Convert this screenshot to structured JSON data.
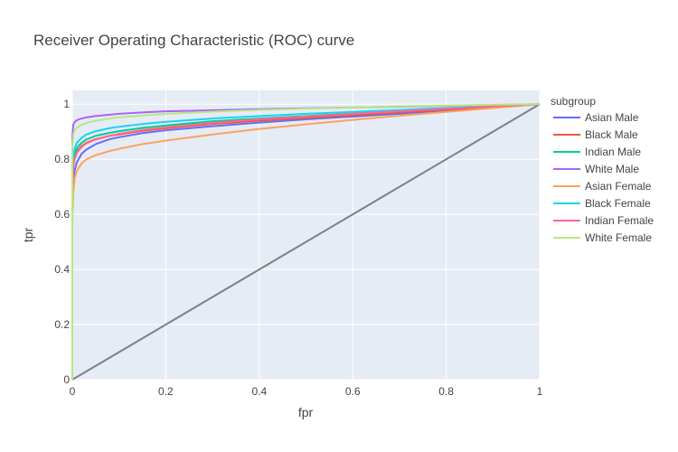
{
  "chart_data": {
    "type": "line",
    "title": "Receiver Operating Characteristic (ROC) curve",
    "xlabel": "fpr",
    "ylabel": "tpr",
    "xlim": [
      0,
      1
    ],
    "ylim": [
      0,
      1.05
    ],
    "x_ticks": [
      "0",
      "0.2",
      "0.4",
      "0.6",
      "0.8",
      "1"
    ],
    "y_ticks": [
      "0",
      "0.2",
      "0.4",
      "0.6",
      "0.8",
      "1"
    ],
    "grid": true,
    "plot_background": "#E5ECF6",
    "legend": {
      "title": "subgroup",
      "placement": "right"
    },
    "series": [
      {
        "name": "Asian Male",
        "color": "#636EFA",
        "x": [
          0,
          0,
          0.002,
          0.005,
          0.01,
          0.02,
          0.03,
          0.05,
          0.08,
          0.1,
          0.15,
          0.2,
          0.3,
          0.4,
          0.5,
          0.6,
          0.7,
          0.8,
          0.9,
          1.0
        ],
        "y": [
          0,
          0.62,
          0.72,
          0.76,
          0.79,
          0.82,
          0.835,
          0.855,
          0.873,
          0.88,
          0.895,
          0.905,
          0.92,
          0.933,
          0.945,
          0.955,
          0.965,
          0.977,
          0.988,
          1.0
        ]
      },
      {
        "name": "Black Male",
        "color": "#EF553B",
        "x": [
          0,
          0,
          0.002,
          0.005,
          0.01,
          0.02,
          0.03,
          0.05,
          0.08,
          0.1,
          0.15,
          0.2,
          0.3,
          0.4,
          0.5,
          0.6,
          0.7,
          0.8,
          0.9,
          1.0
        ],
        "y": [
          0,
          0.7,
          0.78,
          0.81,
          0.83,
          0.848,
          0.86,
          0.873,
          0.885,
          0.89,
          0.903,
          0.912,
          0.928,
          0.94,
          0.95,
          0.96,
          0.97,
          0.98,
          0.99,
          1.0
        ]
      },
      {
        "name": "Indian Male",
        "color": "#00CC96",
        "x": [
          0,
          0,
          0.002,
          0.005,
          0.01,
          0.02,
          0.03,
          0.05,
          0.08,
          0.1,
          0.15,
          0.2,
          0.3,
          0.4,
          0.5,
          0.6,
          0.7,
          0.8,
          0.9,
          1.0
        ],
        "y": [
          0,
          0.72,
          0.79,
          0.82,
          0.842,
          0.86,
          0.872,
          0.885,
          0.896,
          0.902,
          0.914,
          0.923,
          0.938,
          0.948,
          0.957,
          0.966,
          0.975,
          0.984,
          0.992,
          1.0
        ]
      },
      {
        "name": "White Male",
        "color": "#AB63FA",
        "x": [
          0,
          0,
          0.002,
          0.005,
          0.01,
          0.02,
          0.03,
          0.05,
          0.08,
          0.1,
          0.15,
          0.2,
          0.3,
          0.4,
          0.5,
          0.6,
          0.7,
          0.8,
          0.9,
          1.0
        ],
        "y": [
          0,
          0.88,
          0.925,
          0.935,
          0.942,
          0.948,
          0.952,
          0.957,
          0.962,
          0.965,
          0.97,
          0.974,
          0.978,
          0.982,
          0.985,
          0.988,
          0.991,
          0.994,
          0.997,
          1.0
        ]
      },
      {
        "name": "Asian Female",
        "color": "#FFA15A",
        "x": [
          0,
          0,
          0.002,
          0.005,
          0.01,
          0.02,
          0.03,
          0.05,
          0.08,
          0.1,
          0.15,
          0.2,
          0.3,
          0.4,
          0.5,
          0.6,
          0.7,
          0.8,
          0.9,
          1.0
        ],
        "y": [
          0,
          0.58,
          0.68,
          0.73,
          0.76,
          0.785,
          0.8,
          0.815,
          0.83,
          0.838,
          0.855,
          0.868,
          0.89,
          0.91,
          0.927,
          0.943,
          0.958,
          0.972,
          0.986,
          1.0
        ]
      },
      {
        "name": "Black Female",
        "color": "#19D3F3",
        "x": [
          0,
          0,
          0.002,
          0.005,
          0.01,
          0.02,
          0.03,
          0.05,
          0.08,
          0.1,
          0.15,
          0.2,
          0.3,
          0.4,
          0.5,
          0.6,
          0.7,
          0.8,
          0.9,
          1.0
        ],
        "y": [
          0,
          0.75,
          0.81,
          0.84,
          0.86,
          0.878,
          0.89,
          0.902,
          0.913,
          0.918,
          0.928,
          0.936,
          0.948,
          0.957,
          0.965,
          0.972,
          0.979,
          0.986,
          0.993,
          1.0
        ]
      },
      {
        "name": "Indian Female",
        "color": "#FF6692",
        "x": [
          0,
          0,
          0.002,
          0.005,
          0.01,
          0.02,
          0.03,
          0.05,
          0.08,
          0.1,
          0.15,
          0.2,
          0.3,
          0.4,
          0.5,
          0.6,
          0.7,
          0.8,
          0.9,
          1.0
        ],
        "y": [
          0,
          0.68,
          0.77,
          0.8,
          0.825,
          0.845,
          0.858,
          0.872,
          0.885,
          0.892,
          0.906,
          0.916,
          0.932,
          0.945,
          0.955,
          0.965,
          0.974,
          0.983,
          0.992,
          1.0
        ]
      },
      {
        "name": "White Female",
        "color": "#B6E880",
        "x": [
          0,
          0,
          0.002,
          0.005,
          0.01,
          0.02,
          0.03,
          0.05,
          0.08,
          0.1,
          0.15,
          0.2,
          0.3,
          0.4,
          0.5,
          0.6,
          0.7,
          0.8,
          0.9,
          1.0
        ],
        "y": [
          0,
          0.85,
          0.89,
          0.905,
          0.915,
          0.925,
          0.932,
          0.94,
          0.948,
          0.952,
          0.959,
          0.965,
          0.973,
          0.979,
          0.984,
          0.988,
          0.992,
          0.995,
          0.998,
          1.0
        ]
      }
    ],
    "diagonal": {
      "color": "#808080",
      "x": [
        0,
        1
      ],
      "y": [
        0,
        1
      ]
    }
  }
}
